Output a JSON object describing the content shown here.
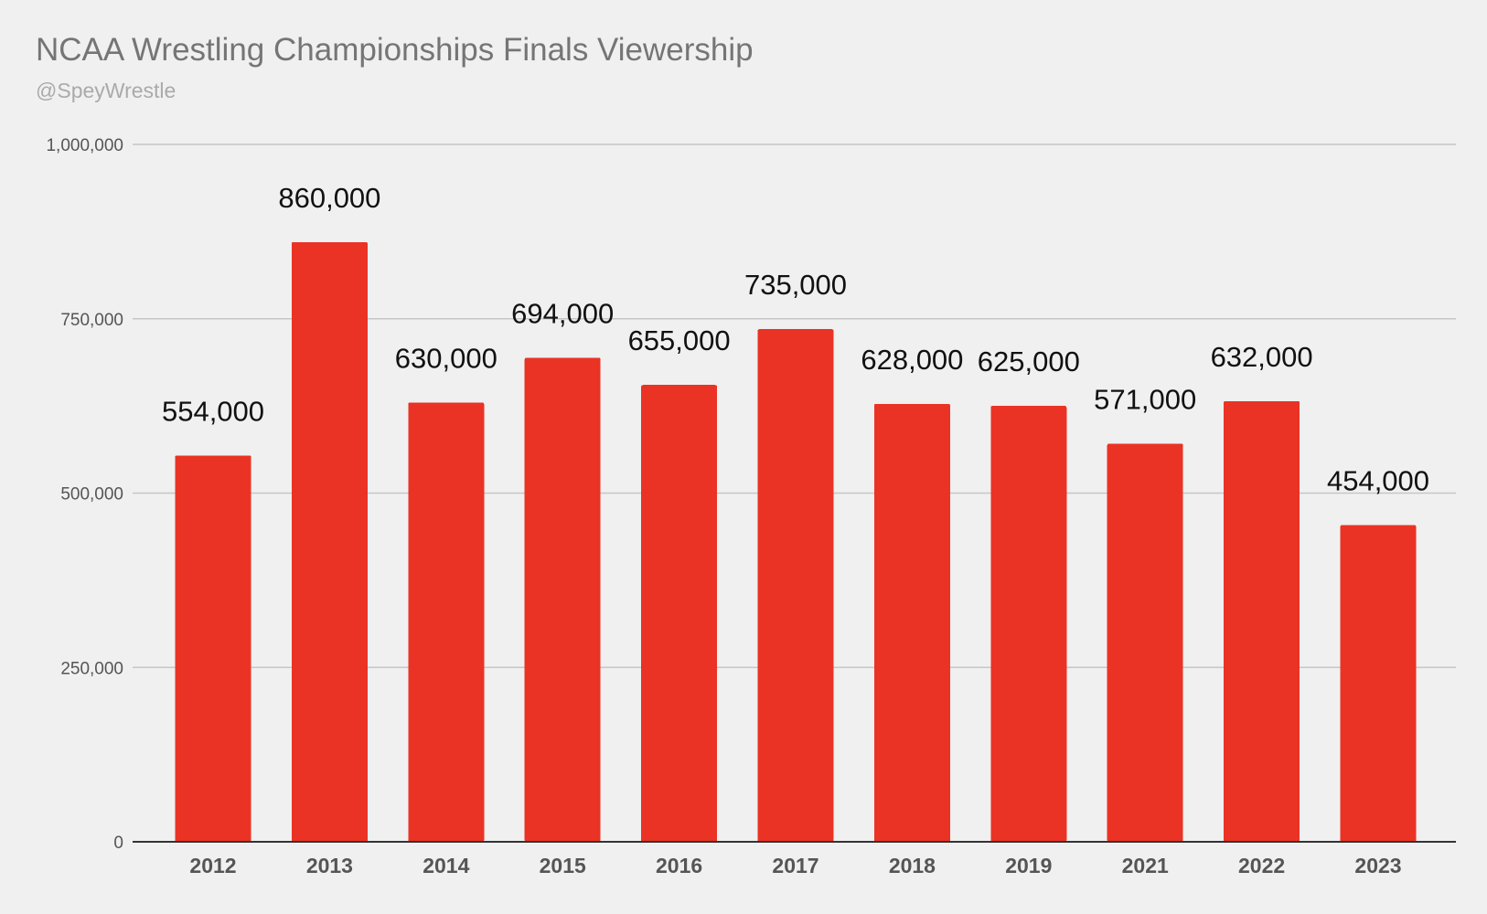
{
  "chart_data": {
    "type": "bar",
    "title": "NCAA Wrestling Championships Finals Viewership",
    "subtitle": "@SpeyWrestle",
    "xlabel": "",
    "ylabel": "",
    "categories": [
      "2012",
      "2013",
      "2014",
      "2015",
      "2016",
      "2017",
      "2018",
      "2019",
      "2021",
      "2022",
      "2023"
    ],
    "values": [
      554000,
      860000,
      630000,
      694000,
      655000,
      735000,
      628000,
      625000,
      571000,
      632000,
      454000
    ],
    "data_labels": [
      "554,000",
      "860,000",
      "630,000",
      "694,000",
      "655,000",
      "735,000",
      "628,000",
      "625,000",
      "571,000",
      "632,000",
      "454,000"
    ],
    "ylim": [
      0,
      1000000
    ],
    "yticks": [
      0,
      250000,
      500000,
      750000,
      1000000
    ],
    "ytick_labels": [
      "0",
      "250,000",
      "500,000",
      "750,000",
      "1,000,000"
    ],
    "grid": true,
    "legend": "none",
    "bar_color": "#ea3324"
  }
}
